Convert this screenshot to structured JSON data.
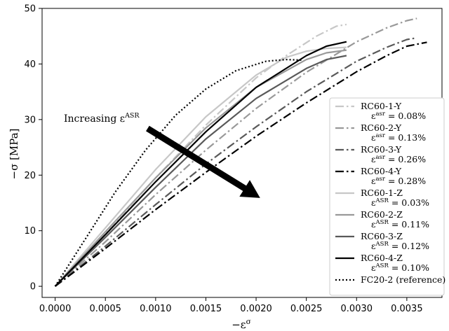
{
  "chart_data": {
    "type": "line",
    "xlabel_main": "−ε",
    "xlabel_sup": "σ",
    "ylabel": "−σ [MPa]",
    "xlim": [
      -0.00013,
      0.00385
    ],
    "ylim": [
      -2,
      50
    ],
    "xticks": [
      0.0,
      0.0005,
      0.001,
      0.0015,
      0.002,
      0.0025,
      0.003,
      0.0035
    ],
    "xtick_labels": [
      "0.0000",
      "0.0005",
      "0.0010",
      "0.0015",
      "0.0020",
      "0.0025",
      "0.0030",
      "0.0035"
    ],
    "yticks": [
      0,
      10,
      20,
      30,
      40,
      50
    ],
    "ytick_labels": [
      "0",
      "10",
      "20",
      "30",
      "40",
      "50"
    ],
    "grid": false,
    "legend_position": "lower-right",
    "annotation": {
      "text": "Increasing ε",
      "sup": "ASR",
      "arrow_from": [
        0.00092,
        28.4
      ],
      "arrow_to": [
        0.00204,
        15.9
      ]
    },
    "series": [
      {
        "name": "RC60-1-Y",
        "sub_main": "ε",
        "sub_sup": "asr",
        "sub_value": " = 0.08%",
        "color": "#c7c7c7",
        "dash": "12,4,2.5,4",
        "width": 2.2,
        "x": [
          0,
          0.0005,
          0.001,
          0.0015,
          0.002,
          0.0023,
          0.0026,
          0.0028,
          0.0029
        ],
        "y": [
          0,
          9.5,
          19.5,
          29,
          37.5,
          41.5,
          45,
          46.8,
          47.1
        ]
      },
      {
        "name": "RC60-2-Y",
        "sub_main": "ε",
        "sub_sup": "asr",
        "sub_value": " = 0.13%",
        "color": "#999999",
        "dash": "12,4,2.5,4",
        "width": 2.2,
        "x": [
          0,
          0.0005,
          0.001,
          0.0015,
          0.002,
          0.0025,
          0.003,
          0.0033,
          0.0035,
          0.0036
        ],
        "y": [
          0,
          8,
          16.5,
          24.5,
          32,
          38.5,
          44,
          46.5,
          47.8,
          48.2
        ]
      },
      {
        "name": "RC60-3-Y",
        "sub_main": "ε",
        "sub_sup": "asr",
        "sub_value": " = 0.26%",
        "color": "#595959",
        "dash": "12,4,2.5,4",
        "width": 2.2,
        "x": [
          0,
          0.0005,
          0.001,
          0.0015,
          0.002,
          0.0025,
          0.003,
          0.0033,
          0.0035,
          0.0036
        ],
        "y": [
          0,
          7.2,
          14.7,
          22,
          28.7,
          35,
          40.5,
          43,
          44.4,
          44.7
        ]
      },
      {
        "name": "RC60-4-Y",
        "sub_main": "ε",
        "sub_sup": "asr",
        "sub_value": " = 0.28%",
        "color": "#000000",
        "dash": "12,4,2.5,4",
        "width": 2.2,
        "x": [
          0,
          0.0005,
          0.001,
          0.0015,
          0.002,
          0.0025,
          0.003,
          0.0033,
          0.0035,
          0.0037
        ],
        "y": [
          0,
          6.8,
          13.8,
          20.5,
          27,
          33,
          38.6,
          41.5,
          43.2,
          43.9
        ]
      },
      {
        "name": "RC60-1-Z",
        "sub_main": "ε",
        "sub_sup": "ASR",
        "sub_value": " = 0.03%",
        "color": "#c7c7c7",
        "dash": "",
        "width": 2.2,
        "x": [
          0,
          0.0005,
          0.001,
          0.0015,
          0.002,
          0.0023,
          0.0025,
          0.0027,
          0.0029
        ],
        "y": [
          0,
          10.5,
          21,
          30.5,
          38,
          41.2,
          42.3,
          42.8,
          43.0
        ]
      },
      {
        "name": "RC60-2-Z",
        "sub_main": "ε",
        "sub_sup": "ASR",
        "sub_value": " = 0.11%",
        "color": "#999999",
        "dash": "",
        "width": 2.2,
        "x": [
          0,
          0.0005,
          0.001,
          0.0015,
          0.002,
          0.0025,
          0.0027,
          0.0029
        ],
        "y": [
          0,
          9.8,
          19.5,
          28.5,
          35.8,
          40.8,
          42.0,
          42.5
        ]
      },
      {
        "name": "RC60-3-Z",
        "sub_main": "ε",
        "sub_sup": "ASR",
        "sub_value": " = 0.12%",
        "color": "#595959",
        "dash": "",
        "width": 2.2,
        "x": [
          0,
          0.0005,
          0.001,
          0.0015,
          0.002,
          0.0025,
          0.0027,
          0.0029
        ],
        "y": [
          0,
          8.8,
          17.8,
          26.5,
          33.8,
          39.2,
          40.8,
          41.5
        ]
      },
      {
        "name": "RC60-4-Z",
        "sub_main": "ε",
        "sub_sup": "ASR",
        "sub_value": " = 0.10%",
        "color": "#000000",
        "dash": "",
        "width": 2.2,
        "x": [
          0,
          0.0005,
          0.001,
          0.0015,
          0.002,
          0.0025,
          0.0027,
          0.0029
        ],
        "y": [
          0,
          9.3,
          18.8,
          27.8,
          35.8,
          41.5,
          43.2,
          44.0
        ]
      },
      {
        "name": "FC20-2 (reference)",
        "sub_main": "",
        "sub_sup": "",
        "sub_value": "",
        "color": "#000000",
        "dash": "2,3",
        "width": 2.2,
        "x": [
          0,
          0.0003,
          0.0006,
          0.0009,
          0.0012,
          0.0015,
          0.0018,
          0.0021,
          0.0023,
          0.00245
        ],
        "y": [
          0,
          8.5,
          17,
          24.5,
          30.8,
          35.5,
          38.8,
          40.5,
          40.8,
          40.7
        ]
      }
    ]
  }
}
